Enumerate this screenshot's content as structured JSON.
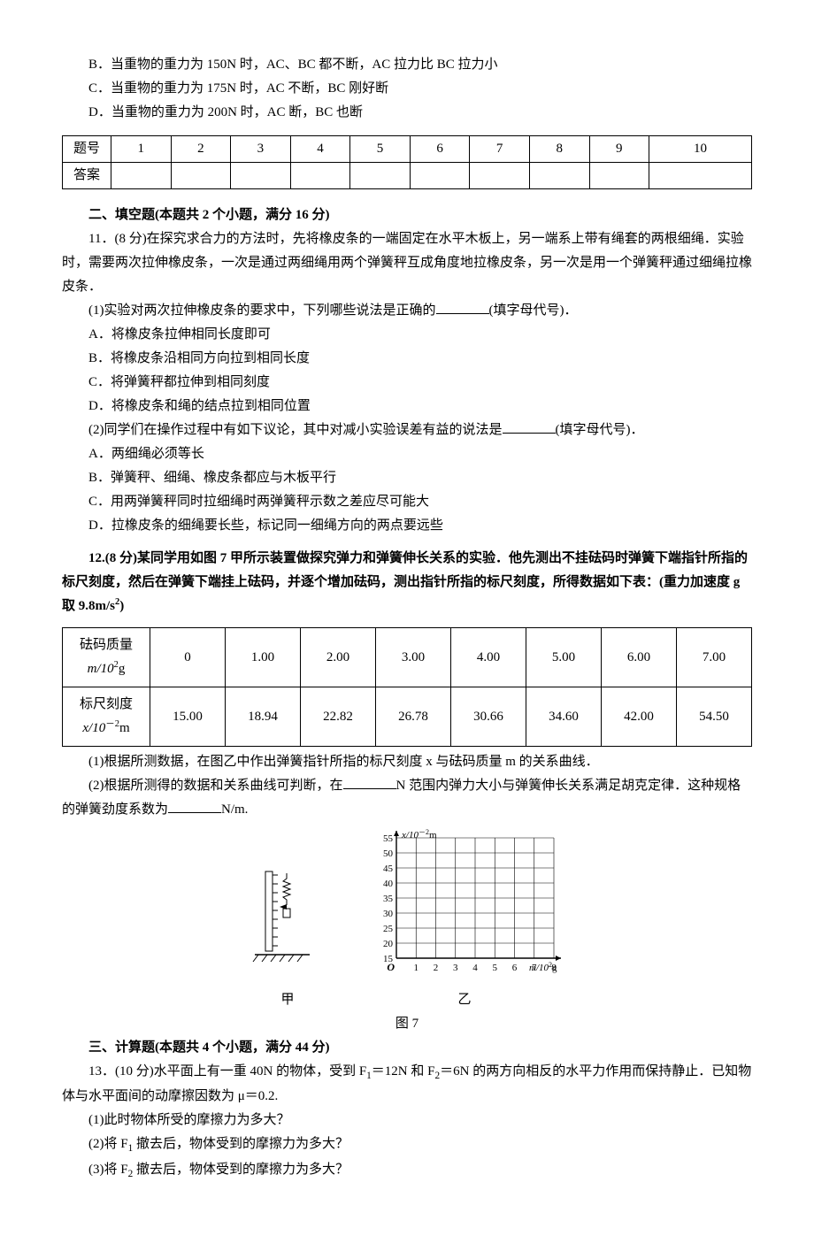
{
  "opts_top": {
    "B": "B．当重物的重力为 150N 时，AC、BC 都不断，AC 拉力比 BC 拉力小",
    "C": "C．当重物的重力为 175N 时，AC 不断，BC 刚好断",
    "D": "D．当重物的重力为 200N 时，AC 断，BC 也断"
  },
  "answer_table": {
    "row1_label": "题号",
    "row2_label": "答案",
    "cols": [
      "1",
      "2",
      "3",
      "4",
      "5",
      "6",
      "7",
      "8",
      "9",
      "10"
    ]
  },
  "sec2": {
    "heading": "二、填空题(本题共 2 个小题，满分 16 分)",
    "q11_lead": "11．(8 分)在探究求合力的方法时，先将橡皮条的一端固定在水平木板上，另一端系上带有绳套的两根细绳．实验时，需要两次拉伸橡皮条，一次是通过两细绳用两个弹簧秤互成角度地拉橡皮条，另一次是用一个弹簧秤通过细绳拉橡皮条．",
    "q11_p1_pre": "(1)实验对两次拉伸橡皮条的要求中，下列哪些说法是正确的",
    "q11_p1_post": "(填字母代号)．",
    "q11_p1_opts": {
      "A": "A．将橡皮条拉伸相同长度即可",
      "B": "B．将橡皮条沿相同方向拉到相同长度",
      "C": "C．将弹簧秤都拉伸到相同刻度",
      "D": "D．将橡皮条和绳的结点拉到相同位置"
    },
    "q11_p2_pre": "(2)同学们在操作过程中有如下议论，其中对减小实验误差有益的说法是",
    "q11_p2_post": "(填字母代号)．",
    "q11_p2_opts": {
      "A": "A．两细绳必须等长",
      "B": "B．弹簧秤、细绳、橡皮条都应与木板平行",
      "C": "C．用两弹簧秤同时拉细绳时两弹簧秤示数之差应尽可能大",
      "D": "D．拉橡皮条的细绳要长些，标记同一细绳方向的两点要远些"
    },
    "q12_lead_pre": "12.(8 分)某同学用如图 7 甲所示装置做探究弹力和弹簧伸长关系的实验．他先测出不挂砝码时弹簧下端指针所指的标尺刻度，然后在弹簧下端挂上砝码，并逐个增加砝码，测出指针所指的标尺刻度，所得数据如下表：(重力加速度 g 取 9.8m/s",
    "q12_lead_sup": "2",
    "q12_lead_post": ")",
    "data_table": {
      "row1_label_line1": "砝码质量",
      "row1_label_line2_pre": "m/10",
      "row1_label_line2_sup": "2",
      "row1_label_line2_post": "g",
      "row2_label_line1": "标尺刻度",
      "row2_label_line2_pre": "x/10",
      "row2_label_line2_sup": "－2",
      "row2_label_line2_post": "m",
      "masses": [
        "0",
        "1.00",
        "2.00",
        "3.00",
        "4.00",
        "5.00",
        "6.00",
        "7.00"
      ],
      "scales": [
        "15.00",
        "18.94",
        "22.82",
        "26.78",
        "30.66",
        "34.60",
        "42.00",
        "54.50"
      ]
    },
    "q12_p1": "(1)根据所测数据，在图乙中作出弹簧指针所指的标尺刻度 x 与砝码质量 m 的关系曲线．",
    "q12_p2_a": "(2)根据所测得的数据和关系曲线可判断，在",
    "q12_p2_b": "N 范围内弹力大小与弹簧伸长关系满足胡克定律．这种规格的弹簧劲度系数为",
    "q12_p2_c": "N/m."
  },
  "figure": {
    "y_label_pre": "x/10",
    "y_label_sup": "－2",
    "y_label_post": "m",
    "x_label_pre": "m/10",
    "x_label_sup": "2",
    "x_label_post": "g",
    "y_ticks": [
      15,
      20,
      25,
      30,
      35,
      40,
      45,
      50,
      55
    ],
    "x_ticks": [
      1,
      2,
      3,
      4,
      5,
      6,
      7,
      8
    ],
    "grid_color": "#000000",
    "bg": "#ffffff",
    "cap_left": "甲",
    "cap_right": "乙",
    "cap_main": "图 7",
    "origin_label": "O"
  },
  "sec3": {
    "heading": "三、计算题(本题共 4 个小题，满分 44 分)",
    "q13_lead_a": "13．(10 分)水平面上有一重 40N 的物体，受到 F",
    "q13_lead_b": "＝12N 和 F",
    "q13_lead_c": "＝6N 的两方向相反的水平力作用而保持静止．已知物体与水平面间的动摩擦因数为 μ＝0.2.",
    "q13_sub1": "(1)此时物体所受的摩擦力为多大？",
    "q13_sub2_a": "(2)将 F",
    "q13_sub2_b": " 撤去后，物体受到的摩擦力为多大？",
    "q13_sub3_a": "(3)将 F",
    "q13_sub3_b": " 撤去后，物体受到的摩擦力为多大？"
  }
}
